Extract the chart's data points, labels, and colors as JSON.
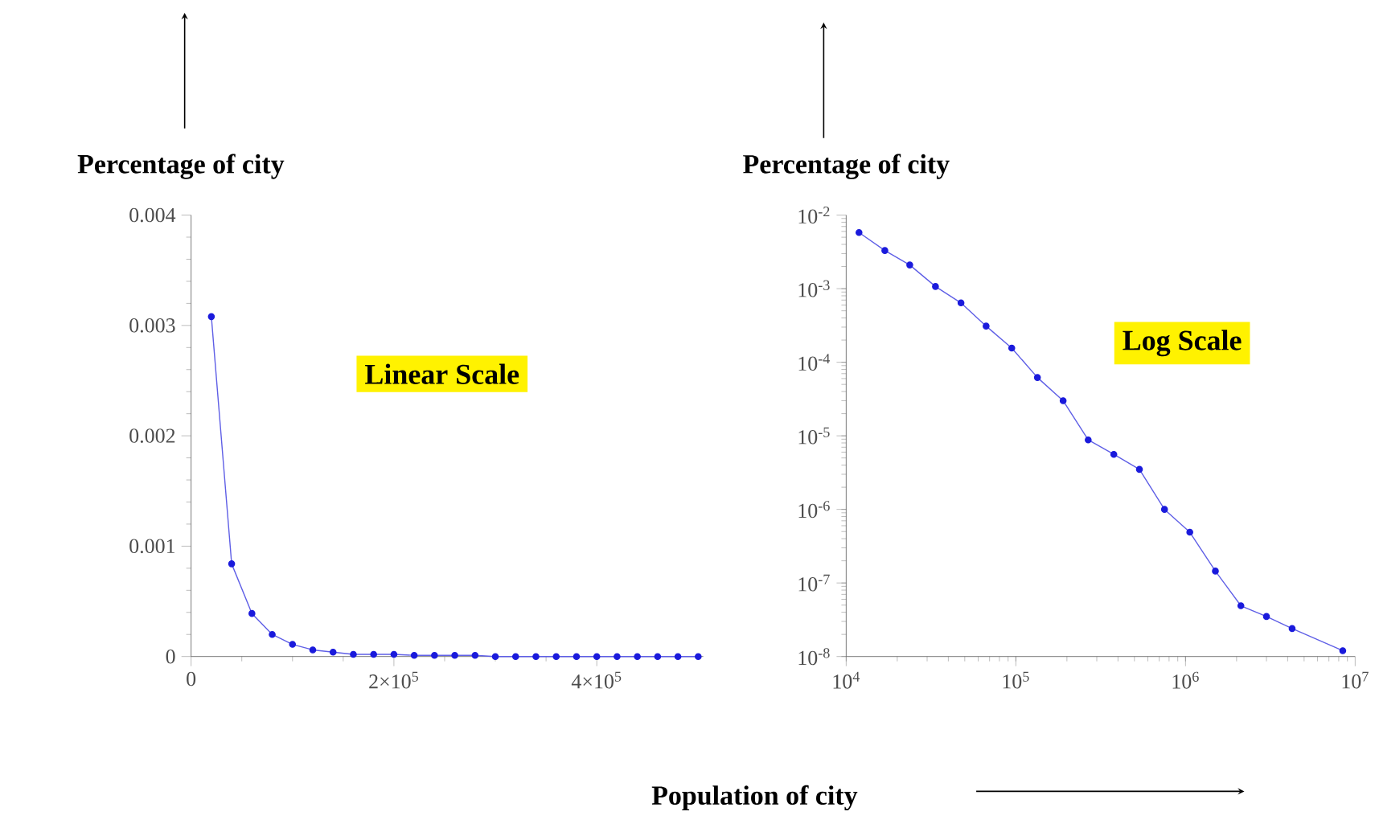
{
  "chart_data": [
    {
      "type": "line",
      "ylabel": "Percentage of city",
      "annotations": [
        "Linear Scale"
      ],
      "marker": "circle",
      "line_style": "solid",
      "series": [
        {
          "color": "#1a1adc",
          "x": [
            20000,
            40000,
            60000,
            80000,
            100000,
            120000,
            140000,
            160000,
            180000,
            200000,
            220000,
            240000,
            260000,
            280000,
            300000,
            320000,
            340000,
            360000,
            380000,
            400000,
            420000,
            440000,
            460000,
            480000,
            500000
          ],
          "values": [
            0.00308,
            0.00084,
            0.00039,
            0.0002,
            0.00011,
            6e-05,
            4e-05,
            2e-05,
            2e-05,
            2e-05,
            1e-05,
            1e-05,
            1e-05,
            1e-05,
            0,
            0,
            0,
            0,
            0,
            0,
            0,
            0,
            0,
            0,
            0
          ]
        }
      ],
      "xlim": [
        0,
        505000
      ],
      "ylim": [
        0,
        0.004
      ],
      "xticks": [
        0,
        {
          "value": 200000,
          "label": "2×10$^{5}$"
        },
        {
          "value": 400000,
          "label": "4×10$^{5}$"
        }
      ],
      "yticks": [
        0,
        0.001,
        0.002,
        0.003,
        0.004
      ]
    },
    {
      "type": "line",
      "ylabel": "Percentage of city",
      "xlabel": "Population of city",
      "annotations": [
        "Log Scale"
      ],
      "marker": "circle",
      "line_style": "solid",
      "log": "xy",
      "series": [
        {
          "color": "#1a1adc",
          "x": [
            11900,
            16900,
            23700,
            33600,
            47500,
            66800,
            94600,
            134000,
            190000,
            267000,
            378000,
            535000,
            752000,
            1060000,
            1500000,
            2120000,
            3000000,
            4250000,
            8450000
          ],
          "values": [
            0.0058,
            0.0033,
            0.0021,
            0.00107,
            0.00064,
            0.00031,
            0.000156,
            6.2e-05,
            3e-05,
            8.8e-06,
            5.6e-06,
            3.5e-06,
            1e-06,
            4.9e-07,
            1.45e-07,
            4.9e-08,
            3.5e-08,
            2.4e-08,
            1.2e-08
          ]
        }
      ],
      "xlim": [
        10000,
        10000000
      ],
      "ylim": [
        1e-08,
        0.01
      ],
      "xticks": [
        {
          "value": 10000,
          "label": "10$^{4}$"
        },
        {
          "value": 100000,
          "label": "10$^{5}$"
        },
        {
          "value": 1000000,
          "label": "10$^{6}$"
        },
        {
          "value": 10000000,
          "label": "10$^{7}$"
        }
      ],
      "yticks": [
        {
          "value": 1e-08,
          "label": "10$^{-8}$"
        },
        {
          "value": 1e-07,
          "label": "10$^{-7}$"
        },
        {
          "value": 1e-06,
          "label": "10$^{-6}$"
        },
        {
          "value": 1e-05,
          "label": "10$^{-5}$"
        },
        {
          "value": 0.0001,
          "label": "10$^{-4}$"
        },
        {
          "value": 0.001,
          "label": "10$^{-3}$"
        },
        {
          "value": 0.01,
          "label": "10$^{-2}$"
        }
      ]
    }
  ]
}
